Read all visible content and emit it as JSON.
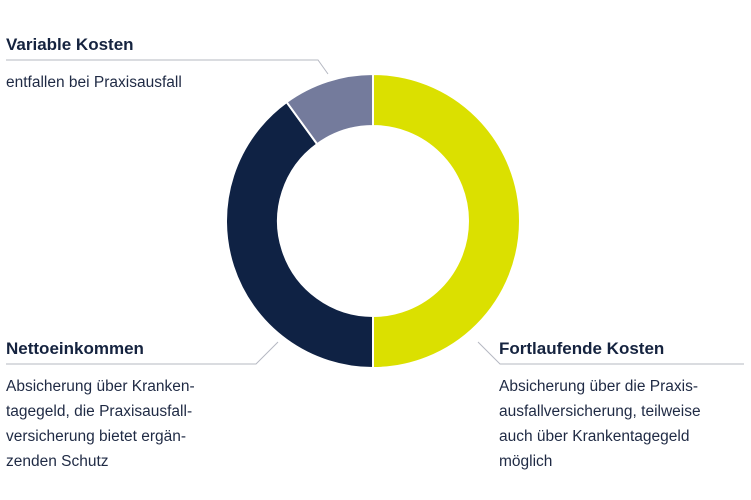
{
  "chart_data": {
    "type": "pie",
    "variant": "donut",
    "title": "",
    "series": [
      {
        "name": "Fortlaufende Kosten",
        "value": 50,
        "color": "#dbe000",
        "description": "Absicherung über die Praxis-\nausfallversicherung, teilweise\nauch über Krankentagegeld\nmöglich"
      },
      {
        "name": "Nettoeinkommen",
        "value": 40,
        "color": "#0f2244",
        "description": "Absicherung über Kranken-\ntagegeld, die Praxisausfall-\nversicherung bietet ergän-\nzenden Schutz"
      },
      {
        "name": "Variable Kosten",
        "value": 10,
        "color": "#747b9c",
        "description": "entfallen bei Praxisausfall"
      }
    ],
    "leader_line_color": "#b5b8c2"
  }
}
